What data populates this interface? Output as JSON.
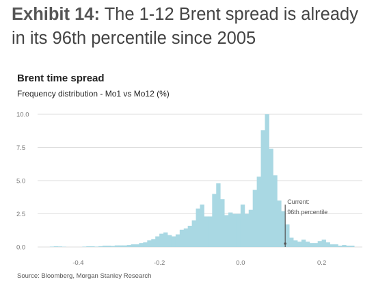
{
  "exhibit": {
    "label": "Exhibit 14:",
    "title": "The 1-12 Brent spread is already in its 96th percentile since 2005"
  },
  "source": "Source: Bloomberg, Morgan Stanley Research",
  "colors": {
    "bar": "#a9d8e3",
    "marker": "#555555",
    "grid": "#dedede"
  },
  "chart_data": {
    "type": "bar",
    "title": "Brent time spread",
    "subtitle": "Frequency distribution - Mo1 vs Mo12 (%)",
    "xlabel": "",
    "ylabel": "",
    "xlim": [
      -0.5,
      0.3
    ],
    "ylim": [
      0,
      10
    ],
    "x_ticks": [
      {
        "value": -0.4,
        "label": "-0.4"
      },
      {
        "value": -0.2,
        "label": "-0.2"
      },
      {
        "value": 0.0,
        "label": "0.0"
      },
      {
        "value": 0.2,
        "label": "0.2"
      }
    ],
    "y_ticks": [
      {
        "value": 0,
        "label": "0.0"
      },
      {
        "value": 2.5,
        "label": "2.5"
      },
      {
        "value": 5,
        "label": "5.0"
      },
      {
        "value": 7.5,
        "label": "7.5"
      },
      {
        "value": 10,
        "label": "10.0"
      }
    ],
    "grid": true,
    "bins": {
      "start": -0.49,
      "width": 0.01,
      "values": [
        0,
        0,
        0.03,
        0.05,
        0.04,
        0.02,
        0,
        0,
        0,
        0,
        0.03,
        0.05,
        0.05,
        0.03,
        0.06,
        0.1,
        0.1,
        0.08,
        0.12,
        0.12,
        0.12,
        0.15,
        0.2,
        0.2,
        0.3,
        0.35,
        0.5,
        0.6,
        0.8,
        1,
        1.1,
        0.9,
        0.8,
        0.95,
        1.3,
        1.4,
        1.6,
        2,
        2.9,
        3.2,
        2.3,
        2.3,
        4,
        4.8,
        3.6,
        2.4,
        2.6,
        2.5,
        2.5,
        3.2,
        2.5,
        2.8,
        4.3,
        5.3,
        8.8,
        10,
        7.4,
        5.4,
        3.5,
        2.7,
        1.7,
        0.7,
        0.5,
        0.4,
        0.55,
        0.4,
        0.3,
        0.3,
        0.45,
        0.55,
        0.35,
        0.2,
        0.2,
        0.1,
        0.15,
        0.1,
        0.1
      ]
    },
    "annotations": [
      {
        "x": 0.11,
        "lines": [
          "Current:",
          "96th percentile"
        ]
      }
    ]
  }
}
